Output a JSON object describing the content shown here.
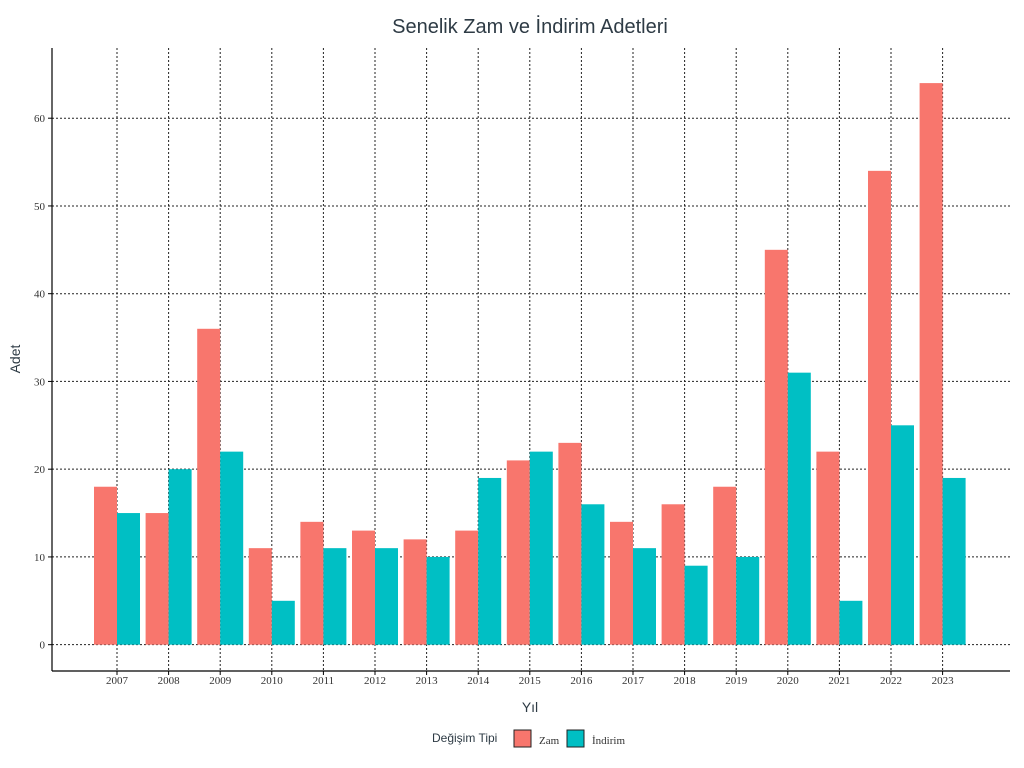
{
  "chart_data": {
    "type": "bar",
    "title": "Senelik Zam ve İndirim Adetleri",
    "xlabel": "Yıl",
    "ylabel": "Adet",
    "categories": [
      "2007",
      "2008",
      "2009",
      "2010",
      "2011",
      "2012",
      "2013",
      "2014",
      "2015",
      "2016",
      "2017",
      "2018",
      "2019",
      "2020",
      "2021",
      "2022",
      "2023"
    ],
    "series": [
      {
        "name": "Zam",
        "color": "#F8766D",
        "values": [
          18,
          15,
          36,
          11,
          14,
          13,
          12,
          13,
          21,
          23,
          14,
          16,
          18,
          45,
          22,
          54,
          64
        ]
      },
      {
        "name": "İndirim",
        "color": "#00BFC4",
        "values": [
          15,
          20,
          22,
          5,
          11,
          11,
          10,
          19,
          22,
          16,
          11,
          9,
          10,
          31,
          5,
          25,
          19
        ]
      }
    ],
    "yticks": [
      0,
      10,
      20,
      30,
      40,
      50,
      60
    ],
    "ylim": [
      -3,
      68
    ],
    "grid": true,
    "legend": {
      "title": "Değişim Tipi",
      "position": "bottom"
    }
  }
}
